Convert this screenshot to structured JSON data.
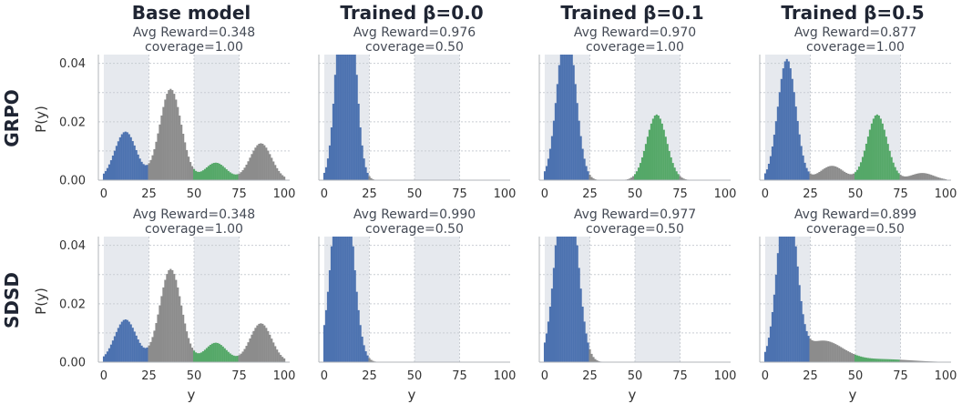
{
  "figure": {
    "column_titles": [
      "Base model",
      "Trained β=0.0",
      "Trained β=0.1",
      "Trained β=0.5"
    ],
    "row_labels": [
      "GRPO",
      "SDSD"
    ],
    "xlabel": "y",
    "ylabel": "P(y)"
  },
  "chart_data": [
    {
      "type": "bar",
      "row": "GRPO",
      "column": "Base model",
      "subtitle_lines": [
        "Avg Reward=0.348",
        "coverage=1.00"
      ],
      "x_ticks": [
        "0",
        "25",
        "50",
        "75",
        "100"
      ],
      "y_ticks": [
        "0.00",
        "0.02",
        "0.04"
      ],
      "xlim": [
        -3,
        103
      ],
      "ylim": [
        0,
        0.043
      ],
      "shaded_intervals": [
        [
          0,
          25
        ],
        [
          50,
          75
        ]
      ],
      "dotted_lines_x": [
        25,
        50,
        75
      ],
      "colors": {
        "blue": "#4c72b0",
        "gray": "#8c8c8c",
        "green": "#55a868",
        "shade": "#e6e9ee"
      },
      "components": [
        {
          "mu": 12,
          "sigma": 6,
          "weight": 0.25
        },
        {
          "mu": 37,
          "sigma": 6,
          "weight": 0.47
        },
        {
          "mu": 62,
          "sigma": 6,
          "weight": 0.09
        },
        {
          "mu": 87,
          "sigma": 6,
          "weight": 0.19
        }
      ]
    },
    {
      "type": "bar",
      "row": "GRPO",
      "column": "Trained β=0.0",
      "subtitle_lines": [
        "Avg Reward=0.976",
        "coverage=0.50"
      ],
      "x_ticks": [
        "0",
        "25",
        "50",
        "75",
        "100"
      ],
      "y_ticks": [],
      "xlim": [
        -3,
        103
      ],
      "ylim": [
        0,
        0.043
      ],
      "shaded_intervals": [
        [
          0,
          25
        ],
        [
          50,
          75
        ]
      ],
      "dotted_lines_x": [
        25,
        50,
        75
      ],
      "colors": {
        "blue": "#4c72b0",
        "gray": "#8c8c8c",
        "green": "#55a868",
        "shade": "#e6e9ee"
      },
      "components": [
        {
          "mu": 12,
          "sigma": 4.5,
          "weight": 0.99
        }
      ]
    },
    {
      "type": "bar",
      "row": "GRPO",
      "column": "Trained β=0.1",
      "subtitle_lines": [
        "Avg Reward=0.970",
        "coverage=1.00"
      ],
      "x_ticks": [
        "0",
        "25",
        "50",
        "75",
        "100"
      ],
      "y_ticks": [],
      "xlim": [
        -3,
        103
      ],
      "ylim": [
        0,
        0.043
      ],
      "shaded_intervals": [
        [
          0,
          25
        ],
        [
          50,
          75
        ]
      ],
      "dotted_lines_x": [
        25,
        50,
        75
      ],
      "colors": {
        "blue": "#4c72b0",
        "gray": "#8c8c8c",
        "green": "#55a868",
        "shade": "#e6e9ee"
      },
      "components": [
        {
          "mu": 12,
          "sigma": 5,
          "weight": 0.68
        },
        {
          "mu": 62,
          "sigma": 5.5,
          "weight": 0.31
        }
      ]
    },
    {
      "type": "bar",
      "row": "GRPO",
      "column": "Trained β=0.5",
      "subtitle_lines": [
        "Avg Reward=0.877",
        "coverage=1.00"
      ],
      "x_ticks": [
        "0",
        "25",
        "50",
        "75",
        "100"
      ],
      "y_ticks": [],
      "xlim": [
        -3,
        103
      ],
      "ylim": [
        0,
        0.043
      ],
      "shaded_intervals": [
        [
          0,
          25
        ],
        [
          50,
          75
        ]
      ],
      "dotted_lines_x": [
        25,
        50,
        75
      ],
      "colors": {
        "blue": "#4c72b0",
        "gray": "#8c8c8c",
        "green": "#55a868",
        "shade": "#e6e9ee"
      },
      "components": [
        {
          "mu": 12,
          "sigma": 5,
          "weight": 0.52
        },
        {
          "mu": 37,
          "sigma": 6.5,
          "weight": 0.08
        },
        {
          "mu": 62,
          "sigma": 5.5,
          "weight": 0.31
        },
        {
          "mu": 87,
          "sigma": 6.5,
          "weight": 0.04
        }
      ]
    },
    {
      "type": "bar",
      "row": "SDSD",
      "column": "Base model",
      "subtitle_lines": [
        "Avg Reward=0.348",
        "coverage=1.00"
      ],
      "x_ticks": [
        "0",
        "25",
        "50",
        "75",
        "100"
      ],
      "y_ticks": [
        "0.00",
        "0.02",
        "0.04"
      ],
      "xlim": [
        -3,
        103
      ],
      "ylim": [
        0,
        0.043
      ],
      "shaded_intervals": [
        [
          0,
          25
        ],
        [
          50,
          75
        ]
      ],
      "dotted_lines_x": [
        25,
        50,
        75
      ],
      "colors": {
        "blue": "#4c72b0",
        "gray": "#8c8c8c",
        "green": "#55a868",
        "shade": "#e6e9ee"
      },
      "components": [
        {
          "mu": 12,
          "sigma": 6,
          "weight": 0.22
        },
        {
          "mu": 37,
          "sigma": 6,
          "weight": 0.48
        },
        {
          "mu": 62,
          "sigma": 6,
          "weight": 0.1
        },
        {
          "mu": 87,
          "sigma": 6,
          "weight": 0.2
        }
      ]
    },
    {
      "type": "bar",
      "row": "SDSD",
      "column": "Trained β=0.0",
      "subtitle_lines": [
        "Avg Reward=0.990",
        "coverage=0.50"
      ],
      "x_ticks": [
        "0",
        "25",
        "50",
        "75",
        "100"
      ],
      "y_ticks": [],
      "xlim": [
        -3,
        103
      ],
      "ylim": [
        0,
        0.043
      ],
      "shaded_intervals": [
        [
          0,
          25
        ],
        [
          50,
          75
        ]
      ],
      "dotted_lines_x": [
        25,
        50,
        75
      ],
      "colors": {
        "blue": "#4c72b0",
        "gray": "#8c8c8c",
        "green": "#55a868",
        "shade": "#e6e9ee"
      },
      "components": [
        {
          "mu": 10,
          "sigma": 5.3,
          "weight": 1.0
        }
      ]
    },
    {
      "type": "bar",
      "row": "SDSD",
      "column": "Trained β=0.1",
      "subtitle_lines": [
        "Avg Reward=0.977",
        "coverage=0.50"
      ],
      "x_ticks": [
        "0",
        "25",
        "50",
        "75",
        "100"
      ],
      "y_ticks": [],
      "xlim": [
        -3,
        103
      ],
      "ylim": [
        0,
        0.043
      ],
      "shaded_intervals": [
        [
          0,
          25
        ],
        [
          50,
          75
        ]
      ],
      "dotted_lines_x": [
        25,
        50,
        75
      ],
      "colors": {
        "blue": "#4c72b0",
        "gray": "#8c8c8c",
        "green": "#55a868",
        "shade": "#e6e9ee"
      },
      "components": [
        {
          "mu": 12,
          "sigma": 5.5,
          "weight": 1.0
        }
      ]
    },
    {
      "type": "bar",
      "row": "SDSD",
      "column": "Trained β=0.5",
      "subtitle_lines": [
        "Avg Reward=0.899",
        "coverage=0.50"
      ],
      "x_ticks": [
        "0",
        "25",
        "50",
        "75",
        "100"
      ],
      "y_ticks": [],
      "xlim": [
        -3,
        103
      ],
      "ylim": [
        0,
        0.043
      ],
      "shaded_intervals": [
        [
          0,
          25
        ],
        [
          50,
          75
        ]
      ],
      "dotted_lines_x": [
        25,
        50,
        75
      ],
      "colors": {
        "blue": "#4c72b0",
        "gray": "#8c8c8c",
        "green": "#55a868",
        "shade": "#e6e9ee"
      },
      "components": [
        {
          "mu": 12,
          "sigma": 5,
          "weight": 0.76
        },
        {
          "mu": 32,
          "sigma": 11,
          "weight": 0.2
        },
        {
          "mu": 65,
          "sigma": 16,
          "weight": 0.04
        }
      ]
    }
  ]
}
